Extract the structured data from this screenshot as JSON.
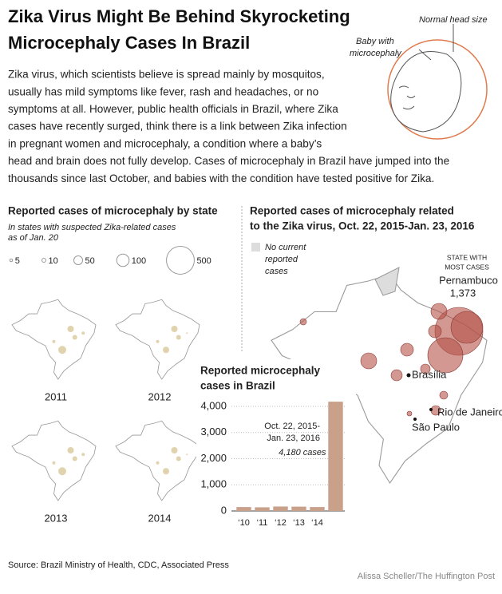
{
  "header": {
    "title_lines": [
      "Zika Virus Might Be Behind Skyrocketing",
      "Microcephaly Cases In Brazil"
    ]
  },
  "intro_lines": [
    "Zika virus, which scientists believe is spread mainly by mosquitos,",
    "usually has mild symptoms like fever, rash and headaches, or no",
    "symptoms at all. However, public health officials in Brazil, where Zika",
    "cases have recently surged, think there is a link between Zika infection",
    "in pregnant women and microcephaly, a condition where a baby’s",
    "head and brain does not fully develop. Cases of microcephaly in Brazil have jumped into the",
    "thousands since last October, and babies with the condition have tested positive for Zika."
  ],
  "illustration": {
    "normal_label": "Normal head size",
    "baby_label_lines": [
      "Baby with",
      "microcephaly"
    ]
  },
  "state_panel": {
    "title": "Reported cases of microcephaly by state",
    "subtitle_lines": [
      "In states with suspected Zika-related cases",
      "as of Jan. 20"
    ],
    "legend_sizes": [
      5,
      10,
      50,
      100,
      500
    ],
    "years": [
      "2011",
      "2012",
      "2013",
      "2014"
    ]
  },
  "zika_map": {
    "title_lines": [
      "Reported cases of microcephaly related",
      "to the Zika virus, Oct. 22, 2015-Jan. 23, 2016"
    ],
    "no_cases_lines": [
      "No current",
      "reported",
      "cases"
    ],
    "most_label_lines": [
      "STATE WITH",
      "MOST CASES"
    ],
    "most_state": "Pernambuco",
    "most_value": "1,373",
    "cities": [
      "Brasília",
      "Rio de Janeiro",
      "São Paulo"
    ]
  },
  "chart_data": {
    "type": "bar",
    "title_lines": [
      "Reported microcephaly",
      "cases in Brazil"
    ],
    "categories": [
      "‘10",
      "‘11",
      "‘12",
      "‘13",
      "‘14",
      null
    ],
    "values": [
      150,
      140,
      170,
      165,
      150,
      4180
    ],
    "value_labels": [
      null,
      null,
      null,
      null,
      null,
      "4,180 cases"
    ],
    "annotation_lines": [
      "Oct. 22, 2015-",
      "Jan. 23, 2016"
    ],
    "color": "#c9a08a",
    "ylim": [
      0,
      4200
    ],
    "yticks": [
      0,
      {
        "value": 1000,
        "label": "1,000"
      },
      {
        "value": 2000,
        "label": "2,000"
      },
      {
        "value": 3000,
        "label": "3,000"
      },
      {
        "value": 4000,
        "label": "4,000"
      }
    ],
    "grid": true
  },
  "footer": {
    "source": "Source: Brazil Ministry of Health, CDC, Associated Press",
    "credit": "Alissa Scheller/The Huffington Post"
  }
}
